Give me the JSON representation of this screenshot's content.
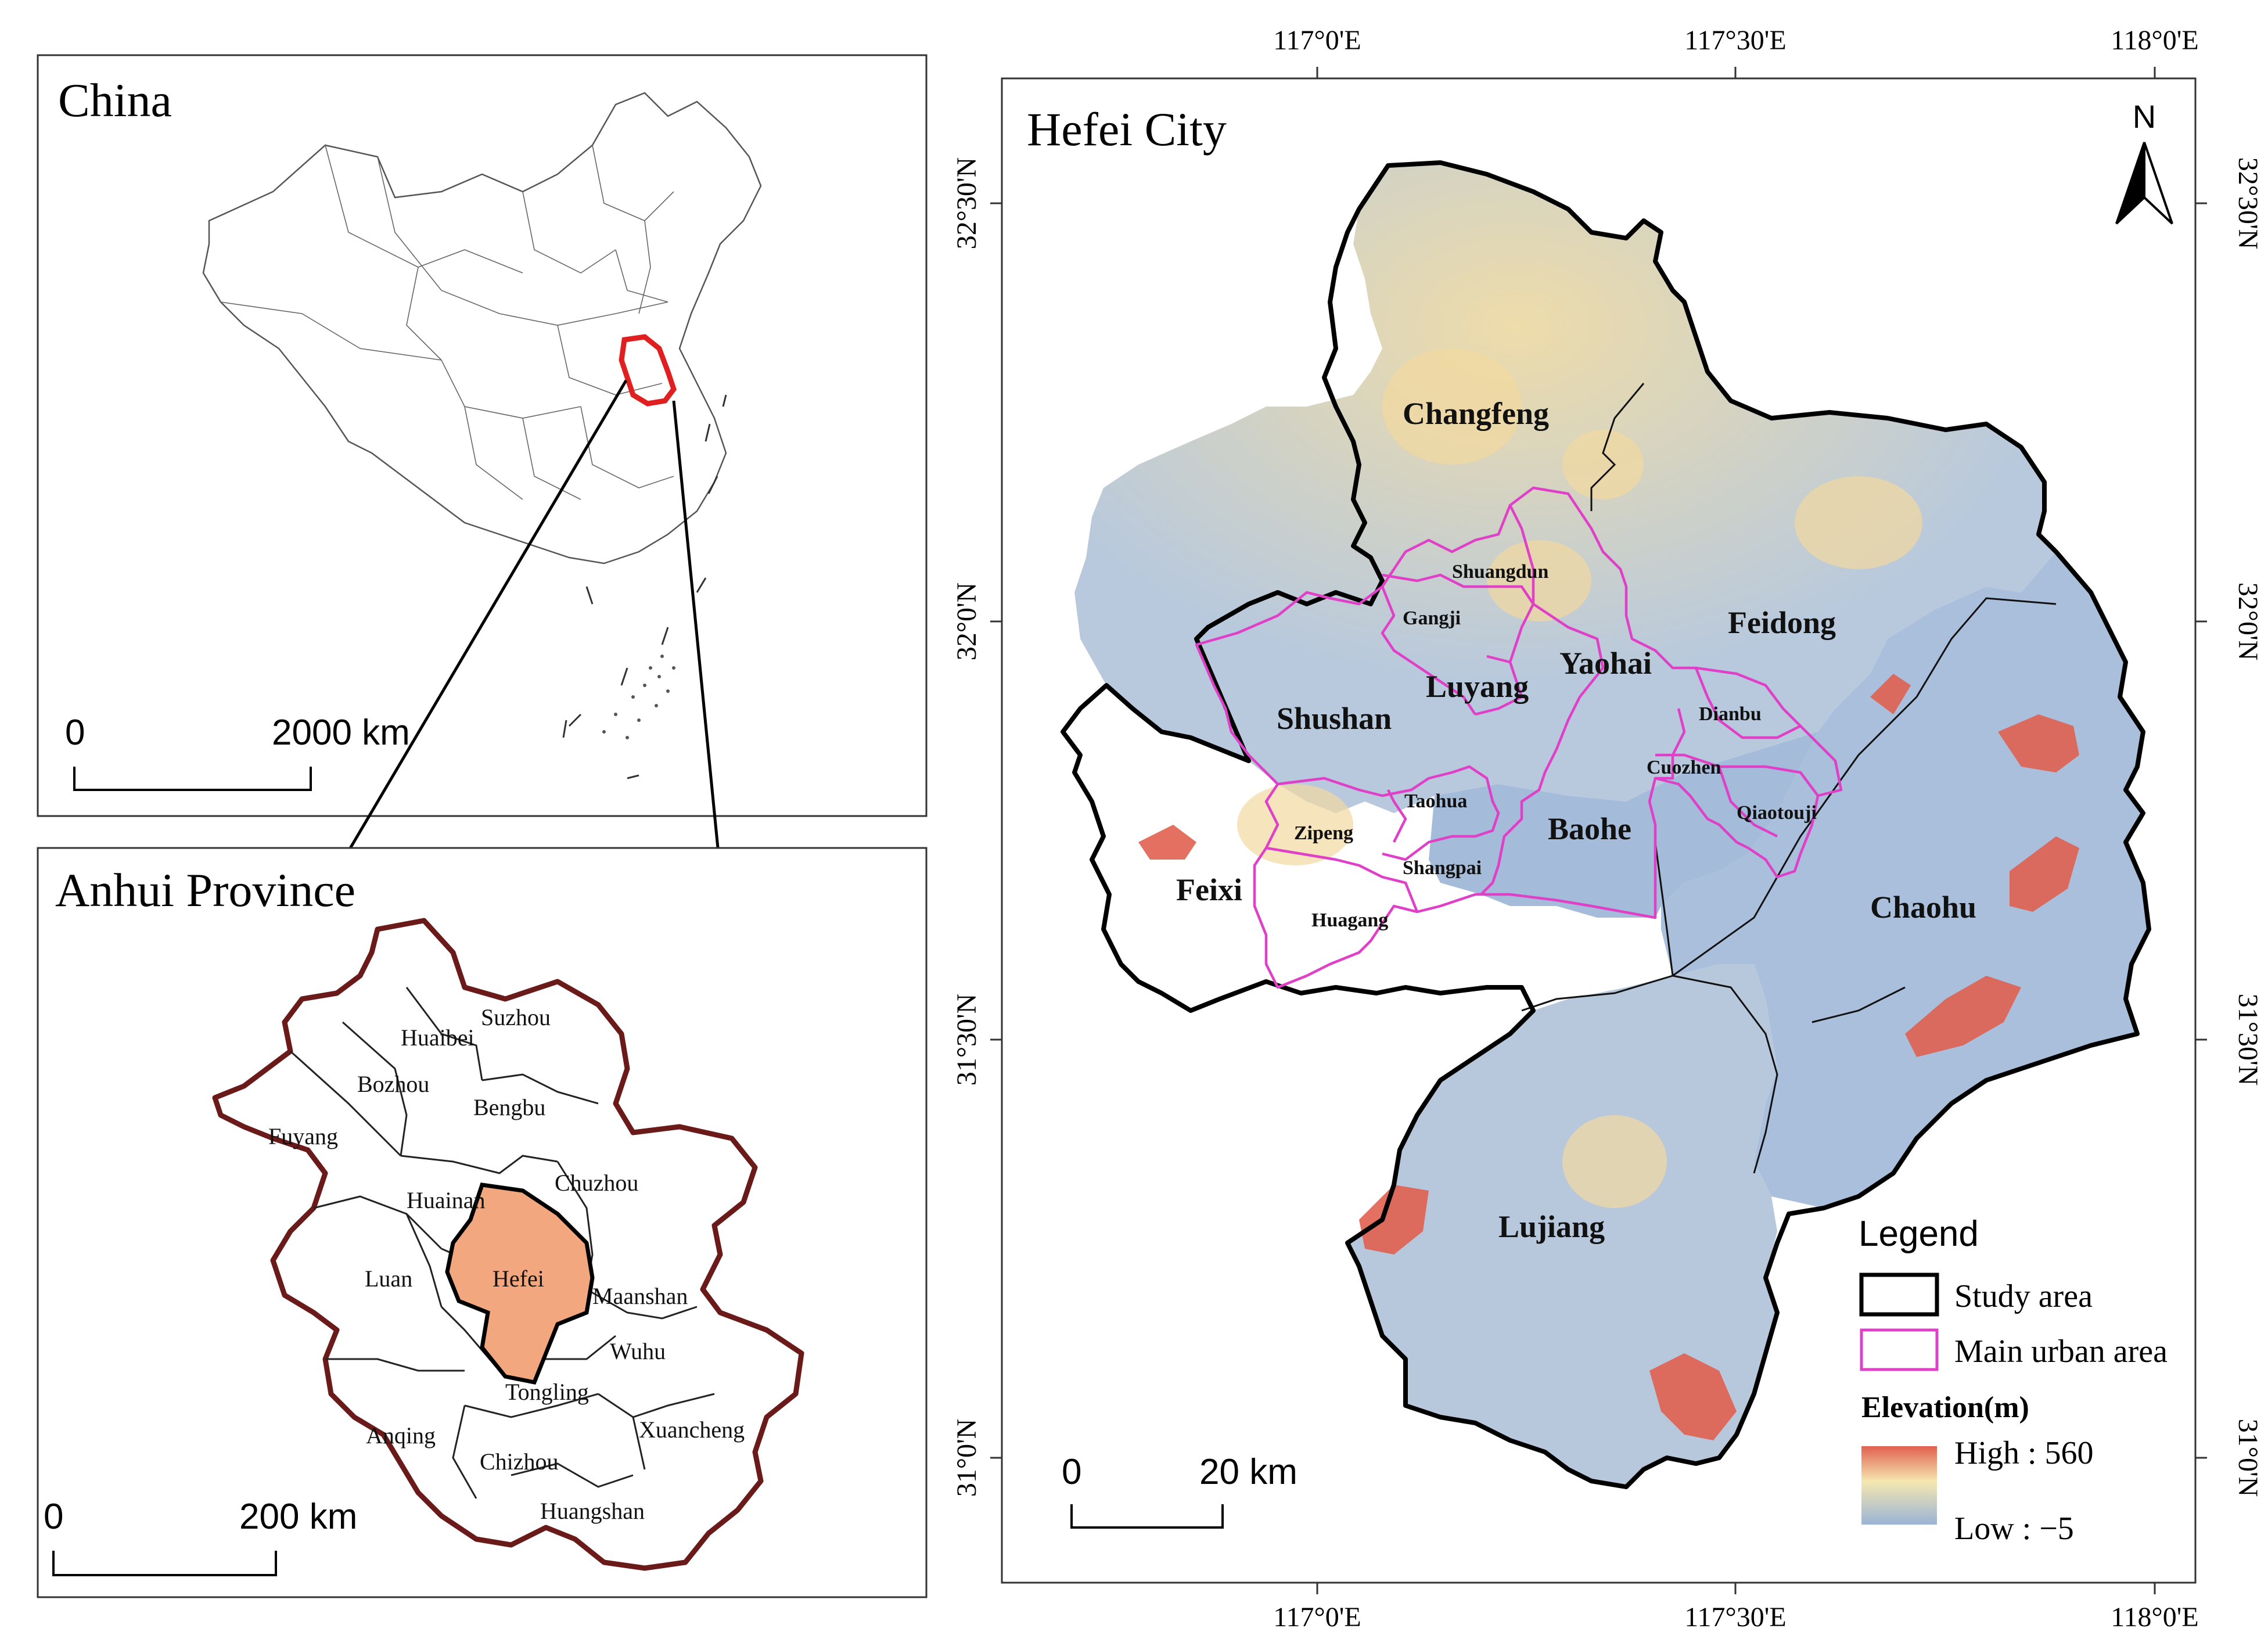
{
  "china_panel": {
    "title": "China",
    "scale": {
      "zero": "0",
      "value": "2000",
      "unit": "km"
    }
  },
  "anhui_panel": {
    "title": "Anhui Province",
    "scale": {
      "zero": "0",
      "value": "200",
      "unit": "km"
    },
    "cities": [
      "Suzhou",
      "Huaibei",
      "Bozhou",
      "Bengbu",
      "Fuyang",
      "Chuzhou",
      "Huainan",
      "Luan",
      "Hefei",
      "Maanshan",
      "Wuhu",
      "Tongling",
      "Anqing",
      "Xuancheng",
      "Chizhou",
      "Huangshan"
    ],
    "highlight_color": "#f2a77e",
    "border_color": "#6b1a1a"
  },
  "hefei_panel": {
    "title": "Hefei City",
    "north": "N",
    "lon_labels": [
      "117°0'E",
      "117°30'E",
      "118°0'E"
    ],
    "lat_labels": [
      "32°30'N",
      "32°0'N",
      "31°30'N",
      "31°0'N"
    ],
    "districts": [
      "Changfeng",
      "Feidong",
      "Shushan",
      "Luyang",
      "Yaohai",
      "Baohe",
      "Feixi",
      "Chaohu",
      "Lujiang"
    ],
    "subdistricts": [
      "Shuangdun",
      "Gangji",
      "Dianbu",
      "Cuozhen",
      "Qiaotouji",
      "Taohua",
      "Zipeng",
      "Shangpai",
      "Huagang"
    ],
    "scale": {
      "zero": "0",
      "value": "20",
      "unit": "km"
    },
    "legend": {
      "title": "Legend",
      "study_area": "Study area",
      "main_urban": "Main urban area",
      "elevation_title": "Elevation(m)",
      "high": "High : 560",
      "low": "Low : −5"
    },
    "colors": {
      "urban_boundary": "#e040c8",
      "elev_high": "#e06050",
      "elev_mid": "#f5e8b0",
      "elev_low": "#9bb3d6"
    }
  }
}
